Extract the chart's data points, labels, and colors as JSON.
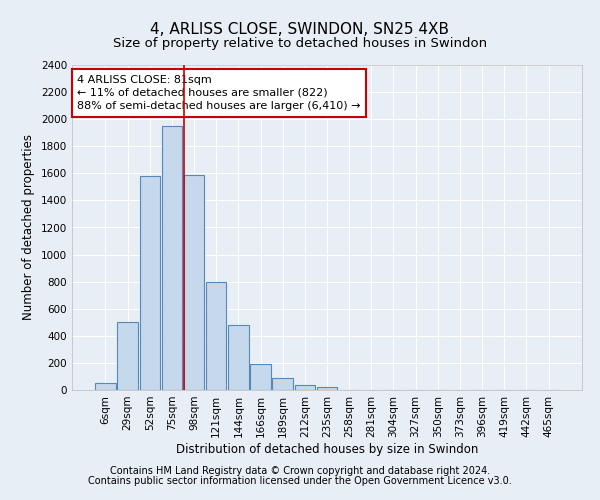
{
  "title": "4, ARLISS CLOSE, SWINDON, SN25 4XB",
  "subtitle": "Size of property relative to detached houses in Swindon",
  "xlabel": "Distribution of detached houses by size in Swindon",
  "ylabel": "Number of detached properties",
  "categories": [
    "6sqm",
    "29sqm",
    "52sqm",
    "75sqm",
    "98sqm",
    "121sqm",
    "144sqm",
    "166sqm",
    "189sqm",
    "212sqm",
    "235sqm",
    "258sqm",
    "281sqm",
    "304sqm",
    "327sqm",
    "350sqm",
    "373sqm",
    "396sqm",
    "419sqm",
    "442sqm",
    "465sqm"
  ],
  "bar_heights": [
    55,
    500,
    1580,
    1950,
    1590,
    800,
    480,
    195,
    90,
    35,
    25,
    0,
    0,
    0,
    0,
    0,
    0,
    0,
    0,
    0,
    0
  ],
  "bar_color": "#c5d8ec",
  "bar_edgecolor": "#5588bb",
  "red_line_bar_index": 4,
  "annotation_line1": "4 ARLISS CLOSE: 81sqm",
  "annotation_line2": "← 11% of detached houses are smaller (822)",
  "annotation_line3": "88% of semi-detached houses are larger (6,410) →",
  "annotation_box_color": "#ffffff",
  "annotation_box_edgecolor": "#cc0000",
  "ylim": [
    0,
    2400
  ],
  "yticks": [
    0,
    200,
    400,
    600,
    800,
    1000,
    1200,
    1400,
    1600,
    1800,
    2000,
    2200,
    2400
  ],
  "footer_line1": "Contains HM Land Registry data © Crown copyright and database right 2024.",
  "footer_line2": "Contains public sector information licensed under the Open Government Licence v3.0.",
  "background_color": "#e8eef5",
  "plot_bg_color": "#e8eef5",
  "grid_color": "#ffffff",
  "title_fontsize": 11,
  "subtitle_fontsize": 9.5,
  "axis_label_fontsize": 8.5,
  "tick_fontsize": 7.5,
  "footer_fontsize": 7,
  "annotation_fontsize": 8
}
